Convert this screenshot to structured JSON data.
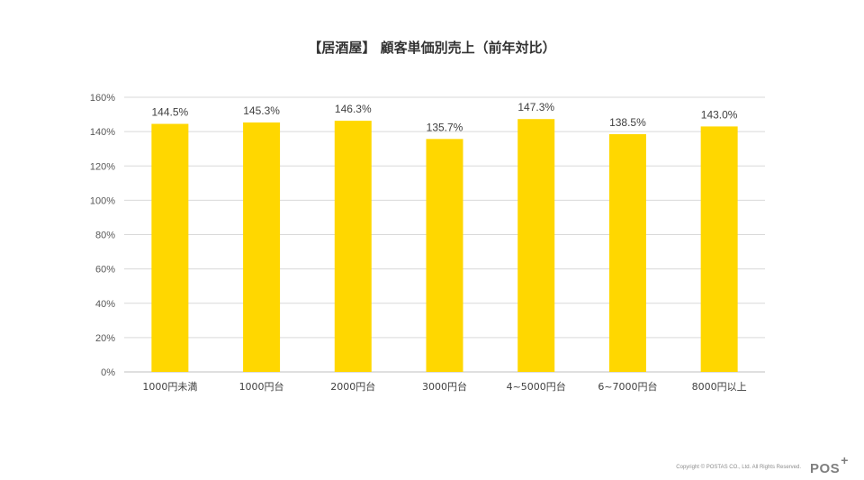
{
  "chart_data": {
    "type": "bar",
    "title": "【居酒屋】 顧客単価別売上（前年対比）",
    "categories": [
      "1000円未満",
      "1000円台",
      "2000円台",
      "3000円台",
      "4~5000円台",
      "6~7000円台",
      "8000円以上"
    ],
    "values": [
      144.5,
      145.3,
      146.3,
      135.7,
      147.3,
      138.5,
      143.0
    ],
    "data_labels": [
      "144.5%",
      "145.3%",
      "146.3%",
      "135.7%",
      "147.3%",
      "138.5%",
      "143.0%"
    ],
    "xlabel": "",
    "ylabel": "",
    "ylim": [
      0,
      160
    ],
    "yticks": [
      0,
      20,
      40,
      60,
      80,
      100,
      120,
      140,
      160
    ],
    "ytick_labels": [
      "0%",
      "20%",
      "40%",
      "60%",
      "80%",
      "100%",
      "120%",
      "140%",
      "160%"
    ],
    "grid": true,
    "legend": false,
    "bar_color": "#FFD700"
  },
  "footer": {
    "copyright": "Copyright © POSTAS CO., Ltd. All Rights Reserved.",
    "logo_text": "POS",
    "logo_mark": "+"
  }
}
